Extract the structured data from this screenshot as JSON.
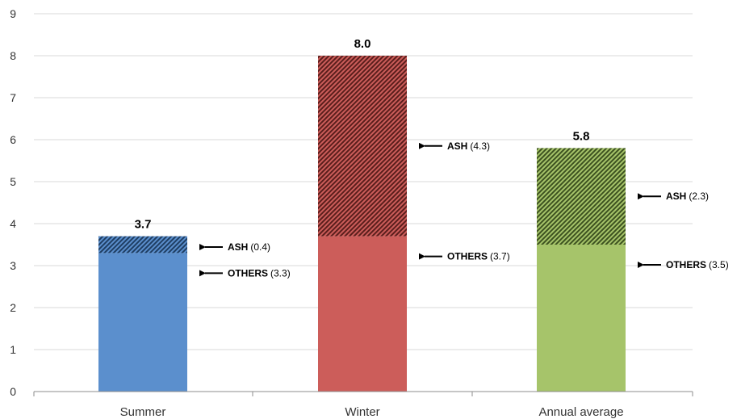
{
  "chart_data": {
    "type": "bar",
    "stacked": true,
    "categories": [
      "Summer",
      "Winter",
      "Annual average"
    ],
    "series": [
      {
        "name": "OTHERS",
        "values": [
          3.3,
          3.7,
          3.5
        ]
      },
      {
        "name": "ASH",
        "values": [
          0.4,
          4.3,
          2.3
        ]
      }
    ],
    "totals": [
      "3.7",
      "8.0",
      "5.8"
    ],
    "segment_labels": [
      {
        "ash": "(0.4)",
        "others": "(3.3)"
      },
      {
        "ash": "(4.3)",
        "others": "(3.7)"
      },
      {
        "ash": "(2.3)",
        "others": "(3.5)"
      }
    ],
    "annotation_names": {
      "ash": "ASH",
      "others": "OTHERS"
    },
    "bar_colors": [
      "#5b8fcd",
      "#cc5d5a",
      "#a6c46a"
    ],
    "hatch_colors": [
      "#1f3e63",
      "#5a1e1c",
      "#3d5220"
    ],
    "ylim": [
      0,
      9
    ],
    "yticks": [
      "0",
      "1",
      "2",
      "3",
      "4",
      "5",
      "6",
      "7",
      "8",
      "9"
    ],
    "grid": true,
    "legend": "none",
    "title": "",
    "xlabel": "",
    "ylabel": ""
  }
}
